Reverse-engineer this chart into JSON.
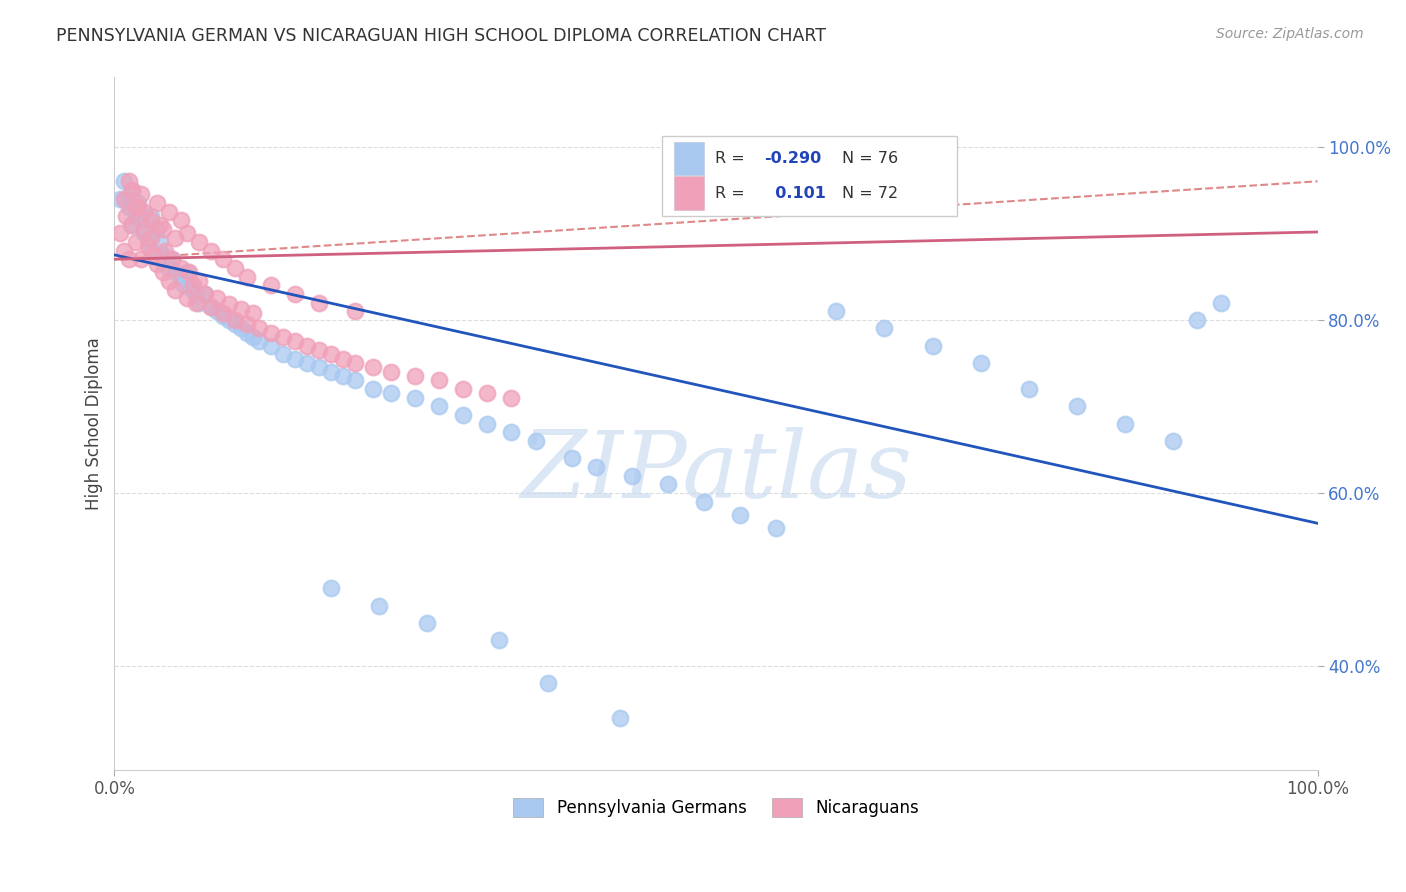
{
  "title": "PENNSYLVANIA GERMAN VS NICARAGUAN HIGH SCHOOL DIPLOMA CORRELATION CHART",
  "source": "Source: ZipAtlas.com",
  "ylabel": "High School Diploma",
  "xlim": [
    0.0,
    1.0
  ],
  "ylim": [
    0.28,
    1.08
  ],
  "yticks": [
    0.4,
    0.6,
    0.8,
    1.0
  ],
  "yticklabels": [
    "40.0%",
    "60.0%",
    "80.0%",
    "100.0%"
  ],
  "blue_color": "#A8C8F0",
  "pink_color": "#F0A0B8",
  "blue_line_color": "#2255BB",
  "pink_line_color": "#D06080",
  "dashed_color": "#E08888",
  "grid_color": "#DDDDDD",
  "watermark_color": "#C5D8F0",
  "legend_R_blue": "-0.290",
  "legend_N_blue": "76",
  "legend_R_pink": "0.101",
  "legend_N_pink": "72",
  "blue_trend_x": [
    0.0,
    1.0
  ],
  "blue_trend_y": [
    0.875,
    0.565
  ],
  "pink_trend_x": [
    0.0,
    1.0
  ],
  "pink_trend_y": [
    0.87,
    0.96
  ],
  "blue_scatter_x": [
    0.005,
    0.008,
    0.01,
    0.012,
    0.014,
    0.015,
    0.018,
    0.02,
    0.022,
    0.025,
    0.028,
    0.03,
    0.03,
    0.035,
    0.038,
    0.04,
    0.042,
    0.045,
    0.048,
    0.05,
    0.055,
    0.058,
    0.06,
    0.062,
    0.065,
    0.068,
    0.07,
    0.075,
    0.08,
    0.085,
    0.09,
    0.095,
    0.1,
    0.105,
    0.11,
    0.115,
    0.12,
    0.13,
    0.14,
    0.15,
    0.16,
    0.17,
    0.18,
    0.19,
    0.2,
    0.215,
    0.23,
    0.25,
    0.27,
    0.29,
    0.31,
    0.33,
    0.35,
    0.38,
    0.4,
    0.43,
    0.46,
    0.49,
    0.52,
    0.55,
    0.6,
    0.64,
    0.68,
    0.72,
    0.76,
    0.8,
    0.84,
    0.88,
    0.9,
    0.92,
    0.18,
    0.22,
    0.26,
    0.32,
    0.36,
    0.42
  ],
  "blue_scatter_y": [
    0.94,
    0.96,
    0.94,
    0.93,
    0.91,
    0.95,
    0.92,
    0.935,
    0.915,
    0.9,
    0.895,
    0.92,
    0.88,
    0.905,
    0.89,
    0.875,
    0.87,
    0.86,
    0.87,
    0.855,
    0.85,
    0.84,
    0.855,
    0.845,
    0.835,
    0.83,
    0.82,
    0.83,
    0.815,
    0.81,
    0.805,
    0.8,
    0.795,
    0.79,
    0.785,
    0.78,
    0.775,
    0.77,
    0.76,
    0.755,
    0.75,
    0.745,
    0.74,
    0.735,
    0.73,
    0.72,
    0.715,
    0.71,
    0.7,
    0.69,
    0.68,
    0.67,
    0.66,
    0.64,
    0.63,
    0.62,
    0.61,
    0.59,
    0.575,
    0.56,
    0.81,
    0.79,
    0.77,
    0.75,
    0.72,
    0.7,
    0.68,
    0.66,
    0.8,
    0.82,
    0.49,
    0.47,
    0.45,
    0.43,
    0.38,
    0.34
  ],
  "pink_scatter_x": [
    0.005,
    0.008,
    0.01,
    0.012,
    0.015,
    0.018,
    0.02,
    0.022,
    0.025,
    0.028,
    0.03,
    0.032,
    0.035,
    0.038,
    0.04,
    0.042,
    0.045,
    0.048,
    0.05,
    0.055,
    0.06,
    0.062,
    0.065,
    0.068,
    0.07,
    0.075,
    0.08,
    0.085,
    0.09,
    0.095,
    0.1,
    0.105,
    0.11,
    0.115,
    0.12,
    0.13,
    0.14,
    0.15,
    0.16,
    0.17,
    0.18,
    0.19,
    0.2,
    0.215,
    0.23,
    0.25,
    0.27,
    0.29,
    0.31,
    0.33,
    0.008,
    0.012,
    0.015,
    0.018,
    0.022,
    0.025,
    0.03,
    0.035,
    0.04,
    0.045,
    0.05,
    0.055,
    0.06,
    0.07,
    0.08,
    0.09,
    0.1,
    0.11,
    0.13,
    0.15,
    0.17,
    0.2
  ],
  "pink_scatter_y": [
    0.9,
    0.88,
    0.92,
    0.87,
    0.91,
    0.89,
    0.93,
    0.87,
    0.905,
    0.885,
    0.895,
    0.875,
    0.865,
    0.91,
    0.855,
    0.88,
    0.845,
    0.87,
    0.835,
    0.86,
    0.825,
    0.855,
    0.84,
    0.82,
    0.845,
    0.83,
    0.815,
    0.825,
    0.808,
    0.818,
    0.8,
    0.812,
    0.795,
    0.808,
    0.79,
    0.785,
    0.78,
    0.775,
    0.77,
    0.765,
    0.76,
    0.755,
    0.75,
    0.745,
    0.74,
    0.735,
    0.73,
    0.72,
    0.715,
    0.71,
    0.94,
    0.96,
    0.95,
    0.93,
    0.945,
    0.925,
    0.915,
    0.935,
    0.905,
    0.925,
    0.895,
    0.915,
    0.9,
    0.89,
    0.88,
    0.87,
    0.86,
    0.85,
    0.84,
    0.83,
    0.82,
    0.81
  ]
}
